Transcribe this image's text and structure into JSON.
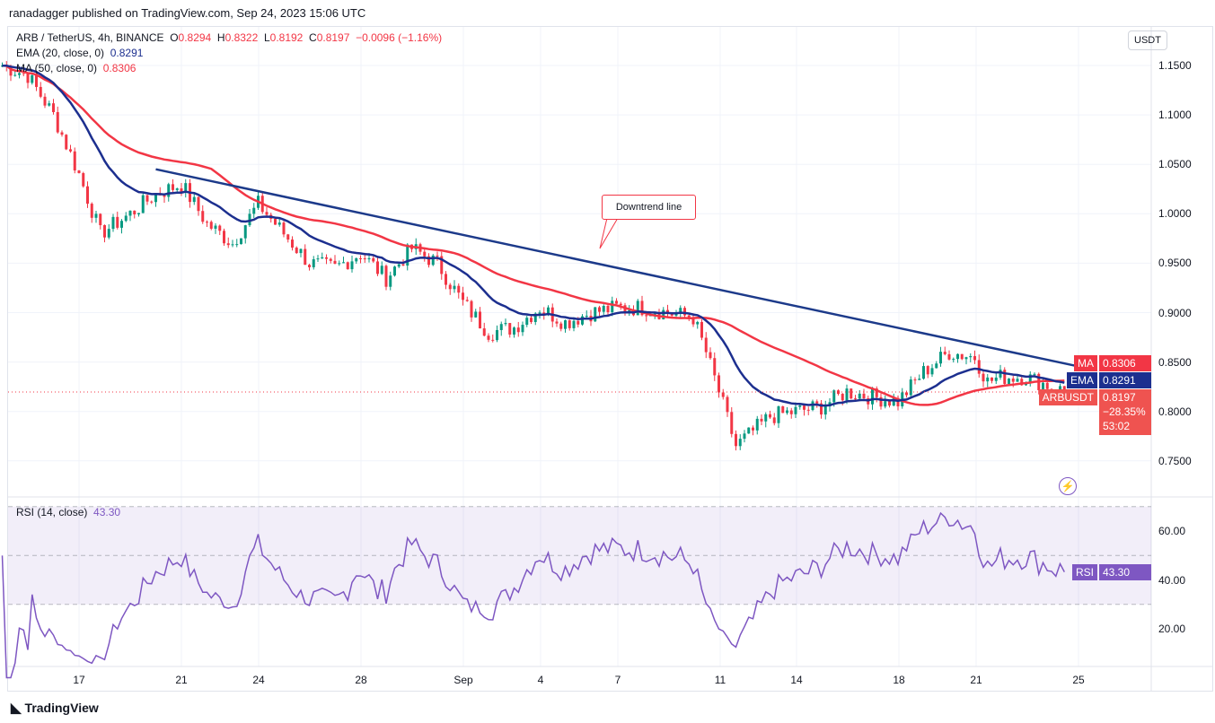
{
  "header": {
    "published": "ranadagger published on TradingView.com, Sep 24, 2023 15:06 UTC"
  },
  "legend": {
    "symbol": "ARB / TetherUS, 4h, BINANCE",
    "o_label": "O",
    "o": "0.8294",
    "h_label": "H",
    "h": "0.8322",
    "l_label": "L",
    "l": "0.8192",
    "c_label": "C",
    "c": "0.8197",
    "change": "−0.0096 (−1.16%)",
    "ema": "EMA (20, close, 0)",
    "ema_value": "0.8291",
    "ma": "MA (50, close, 0)",
    "ma_value": "0.8306",
    "rsi": "RSI (14, close)",
    "rsi_value": "43.30"
  },
  "axis": {
    "currency": "USDT",
    "price_ticks": [
      "1.1500",
      "1.1000",
      "1.0500",
      "1.0000",
      "0.9500",
      "0.9000",
      "0.8500",
      "0.8000",
      "0.7500"
    ],
    "rsi_ticks": [
      "60.00",
      "40.00",
      "20.00"
    ],
    "time_ticks": [
      "17",
      "21",
      "24",
      "28",
      "Sep",
      "4",
      "7",
      "11",
      "14",
      "18",
      "21",
      "25"
    ]
  },
  "tags": {
    "ma_label": "MA",
    "ma_value": "0.8306",
    "ema_label": "EMA",
    "ema_value": "0.8291",
    "symbol_label": "ARBUSDT",
    "price": "0.8197",
    "change_pct": "−28.35%",
    "countdown": "53:02",
    "rsi_label": "RSI",
    "rsi_value": "43.30"
  },
  "annotation": {
    "text": "Downtrend line"
  },
  "footer": {
    "brand": "TradingView"
  },
  "colors": {
    "up": "#089981",
    "down": "#f23645",
    "ema": "#1c2f8f",
    "ma": "#f23645",
    "rsi": "#7e57c2",
    "trendline": "#1c3a8a"
  },
  "chart_data": {
    "type": "candlestick",
    "interval": "4h",
    "ylim": [
      0.73,
      1.16
    ],
    "rsi_levels": [
      70,
      50,
      30
    ],
    "close_path": [
      [
        "2023-08-14 00:00",
        1.15
      ],
      [
        "2023-08-15 00:00",
        1.14
      ],
      [
        "2023-08-16 00:00",
        1.1
      ],
      [
        "2023-08-17 00:00",
        1.04
      ],
      [
        "2023-08-17 20:00",
        0.98
      ],
      [
        "2023-08-19 00:00",
        1.0
      ],
      [
        "2023-08-20 00:00",
        1.02
      ],
      [
        "2023-08-21 00:00",
        1.03
      ],
      [
        "2023-08-22 00:00",
        0.99
      ],
      [
        "2023-08-23 00:00",
        0.97
      ],
      [
        "2023-08-24 00:00",
        1.01
      ],
      [
        "2023-08-25 00:00",
        0.98
      ],
      [
        "2023-08-26 00:00",
        0.95
      ],
      [
        "2023-08-27 00:00",
        0.945
      ],
      [
        "2023-08-28 00:00",
        0.96
      ],
      [
        "2023-08-29 00:00",
        0.935
      ],
      [
        "2023-08-30 00:00",
        0.965
      ],
      [
        "2023-08-31 00:00",
        0.95
      ],
      [
        "2023-09-01 00:00",
        0.91
      ],
      [
        "2023-09-02 00:00",
        0.88
      ],
      [
        "2023-09-03 00:00",
        0.885
      ],
      [
        "2023-09-04 00:00",
        0.905
      ],
      [
        "2023-09-05 00:00",
        0.89
      ],
      [
        "2023-09-06 00:00",
        0.9
      ],
      [
        "2023-09-07 00:00",
        0.905
      ],
      [
        "2023-09-08 00:00",
        0.905
      ],
      [
        "2023-09-09 00:00",
        0.9
      ],
      [
        "2023-09-10 00:00",
        0.895
      ],
      [
        "2023-09-10 12:00",
        0.86
      ],
      [
        "2023-09-11 00:00",
        0.82
      ],
      [
        "2023-09-11 16:00",
        0.765
      ],
      [
        "2023-09-12 08:00",
        0.78
      ],
      [
        "2023-09-13 00:00",
        0.795
      ],
      [
        "2023-09-14 00:00",
        0.8
      ],
      [
        "2023-09-15 00:00",
        0.805
      ],
      [
        "2023-09-16 00:00",
        0.82
      ],
      [
        "2023-09-17 00:00",
        0.815
      ],
      [
        "2023-09-18 00:00",
        0.81
      ],
      [
        "2023-09-19 00:00",
        0.84
      ],
      [
        "2023-09-20 00:00",
        0.86
      ],
      [
        "2023-09-21 00:00",
        0.855
      ],
      [
        "2023-09-21 12:00",
        0.83
      ],
      [
        "2023-09-22 00:00",
        0.835
      ],
      [
        "2023-09-23 00:00",
        0.835
      ],
      [
        "2023-09-24 00:00",
        0.825
      ],
      [
        "2023-09-24 12:00",
        0.8197
      ]
    ],
    "trendline": [
      [
        "2023-08-20 00:00",
        1.045
      ],
      [
        "2023-09-25 08:00",
        0.844
      ]
    ]
  }
}
